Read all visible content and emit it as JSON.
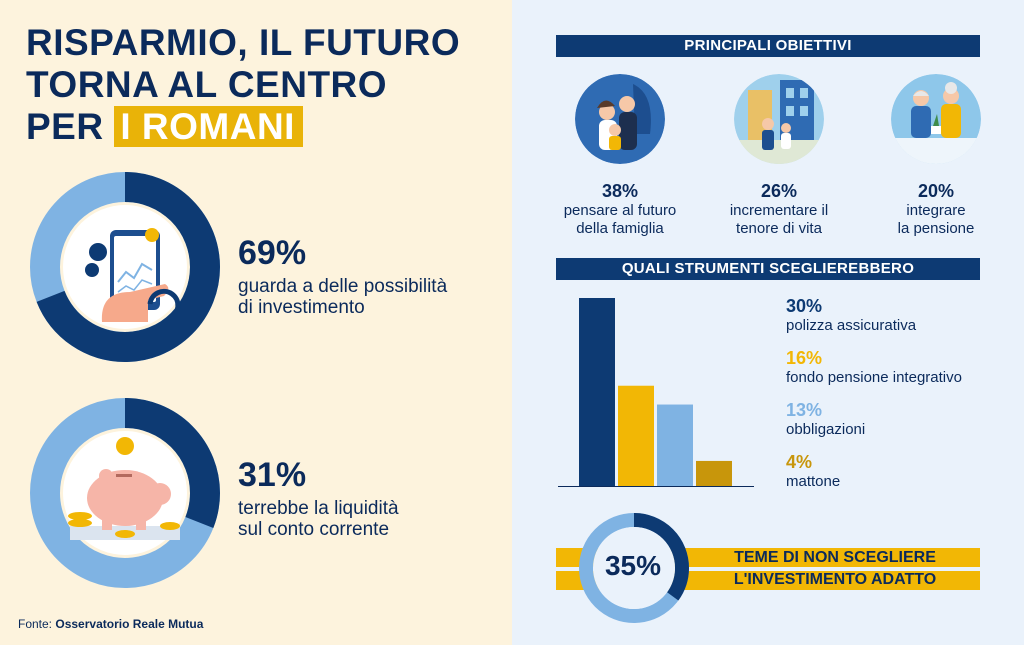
{
  "title": {
    "line1": "RISPARMIO, IL FUTURO",
    "line2": "TORNA AL CENTRO",
    "line3_prefix": "PER",
    "line3_highlight": "I ROMANI"
  },
  "stats": [
    {
      "pct": "69%",
      "line1": "guarda a delle possibilità",
      "line2": "di investimento",
      "value": 69
    },
    {
      "pct": "31%",
      "line1": "terrebbe la liquidità",
      "line2": "sul conto corrente",
      "value": 31
    }
  ],
  "source": {
    "prefix": "Fonte:",
    "name": "Osservatorio Reale Mutua"
  },
  "objectives": {
    "header": "PRINCIPALI OBIETTIVI",
    "items": [
      {
        "pct": "38%",
        "line1": "pensare al futuro",
        "line2": "della famiglia",
        "icon": "family-icon"
      },
      {
        "pct": "26%",
        "line1": "incrementare il",
        "line2": "tenore di vita",
        "icon": "city-family-icon"
      },
      {
        "pct": "20%",
        "line1": "integrare",
        "line2": "la pensione",
        "icon": "elderly-couple-icon"
      }
    ]
  },
  "tools": {
    "header": "QUALI STRUMENTI SCEGLIEREBBERO"
  },
  "worry": {
    "pct": "35%",
    "line1": "TEME DI NON SCEGLIERE",
    "line2": "L'INVESTIMENTO ADATTO",
    "value": 35
  },
  "colors": {
    "navy": "#0d3a73",
    "gold": "#f2b705",
    "lightblue": "#7fb3e3",
    "darkgold": "#c8960b",
    "cream": "#fdf3dd",
    "paleblue": "#eaf2fb"
  },
  "chart_data": {
    "type": "bar",
    "categories": [
      "polizza assicurativa",
      "fondo pensione integrativo",
      "obbligazioni",
      "mattone"
    ],
    "labels": [
      "30%",
      "16%",
      "13%",
      "4%"
    ],
    "values": [
      30,
      16,
      13,
      4
    ],
    "colors": [
      "#0d3a73",
      "#f2b705",
      "#7fb3e3",
      "#c8960b"
    ],
    "ylim": [
      0,
      30
    ]
  }
}
